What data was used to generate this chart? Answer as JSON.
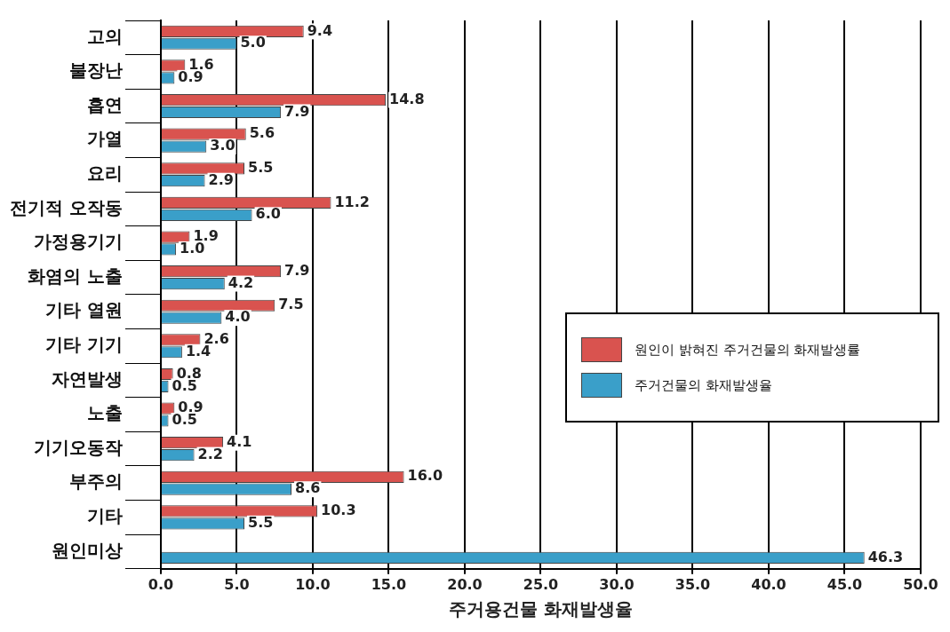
{
  "chart_data": {
    "type": "bar",
    "orientation": "horizontal",
    "xlabel": "주거용건물 화재발생율",
    "categories": [
      "고의",
      "불장난",
      "흡연",
      "가열",
      "요리",
      "전기적 오작동",
      "가정용기기",
      "화염의 노출",
      "기타 열원",
      "기타 기기",
      "자연발생",
      "노출",
      "기기오동작",
      "부주의",
      "기타",
      "원인미상"
    ],
    "series": [
      {
        "name": "원인이 밝혀진 주거건물의 화재발생률",
        "color": "#d9534f",
        "values": [
          9.4,
          1.6,
          14.8,
          5.6,
          5.5,
          11.2,
          1.9,
          7.9,
          7.5,
          2.6,
          0.8,
          0.9,
          4.1,
          16.0,
          10.3,
          null
        ],
        "value_labels": [
          "9.4",
          "1.6",
          "14.8",
          "5.6",
          "5.5",
          "11.2",
          "1.9",
          "7.9",
          "7.5",
          "2.6",
          "0.8",
          "0.9",
          "4.1",
          "16.0",
          "10.3",
          null
        ]
      },
      {
        "name": "주거건물의 화재발생율",
        "color": "#3a9fc9",
        "values": [
          5.0,
          0.9,
          7.9,
          3.0,
          2.9,
          6.0,
          1.0,
          4.2,
          4.0,
          1.4,
          0.5,
          0.5,
          2.2,
          8.6,
          5.5,
          46.3
        ],
        "value_labels": [
          "5.0",
          "0.9",
          "7.9",
          "3.0",
          "2.9",
          "6.0",
          "1.0",
          "4.2",
          "4.0",
          "1.4",
          "0.5",
          "0.5",
          "2.2",
          "8.6",
          "5.5",
          "46.3"
        ]
      }
    ],
    "xlim": [
      0,
      50
    ],
    "xticks": [
      {
        "value": 0,
        "label": "0.0"
      },
      {
        "value": 5,
        "label": "5.0"
      },
      {
        "value": 10,
        "label": "10.0"
      },
      {
        "value": 15,
        "label": "15.0"
      },
      {
        "value": 20,
        "label": "20.0"
      },
      {
        "value": 25,
        "label": "25.0"
      },
      {
        "value": 30,
        "label": "30.0"
      },
      {
        "value": 35,
        "label": "35.0"
      },
      {
        "value": 40,
        "label": "40.0"
      },
      {
        "value": 45,
        "label": "45.0"
      },
      {
        "value": 50,
        "label": "50.0"
      }
    ],
    "grid": "x",
    "legend": "right"
  }
}
